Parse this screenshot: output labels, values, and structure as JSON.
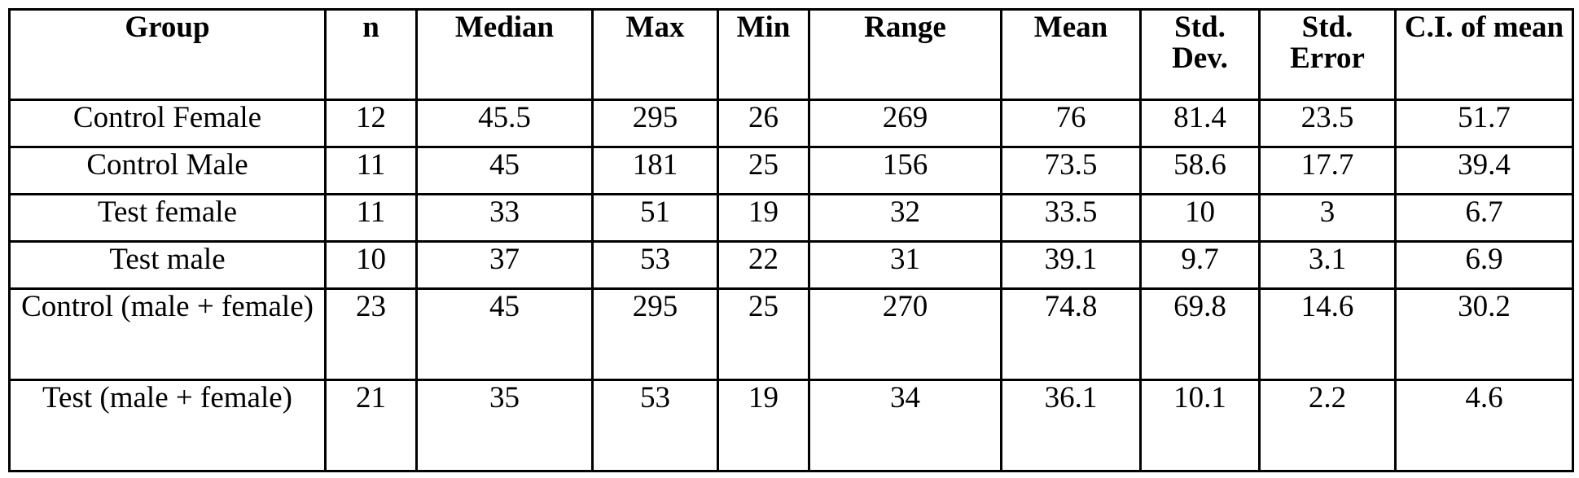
{
  "table": {
    "headers": [
      "Group",
      "n",
      "Median",
      "Max",
      "Min",
      "Range",
      "Mean",
      "Std. Dev.",
      "Std. Error",
      "C.I. of mean"
    ],
    "rows": [
      [
        "Control Female",
        "12",
        "45.5",
        "295",
        "26",
        "269",
        "76",
        "81.4",
        "23.5",
        "51.7"
      ],
      [
        "Control Male",
        "11",
        "45",
        "181",
        "25",
        "156",
        "73.5",
        "58.6",
        "17.7",
        "39.4"
      ],
      [
        "Test female",
        "11",
        "33",
        "51",
        "19",
        "32",
        "33.5",
        "10",
        "3",
        "6.7"
      ],
      [
        "Test male",
        "10",
        "37",
        "53",
        "22",
        "31",
        "39.1",
        "9.7",
        "3.1",
        "6.9"
      ],
      [
        "Control (male + female)",
        "23",
        "45",
        "295",
        "25",
        "270",
        "74.8",
        "69.8",
        "14.6",
        "30.2"
      ],
      [
        "Test (male + female)",
        "21",
        "35",
        "53",
        "19",
        "34",
        "36.1",
        "10.1",
        "2.2",
        "4.6"
      ]
    ]
  }
}
